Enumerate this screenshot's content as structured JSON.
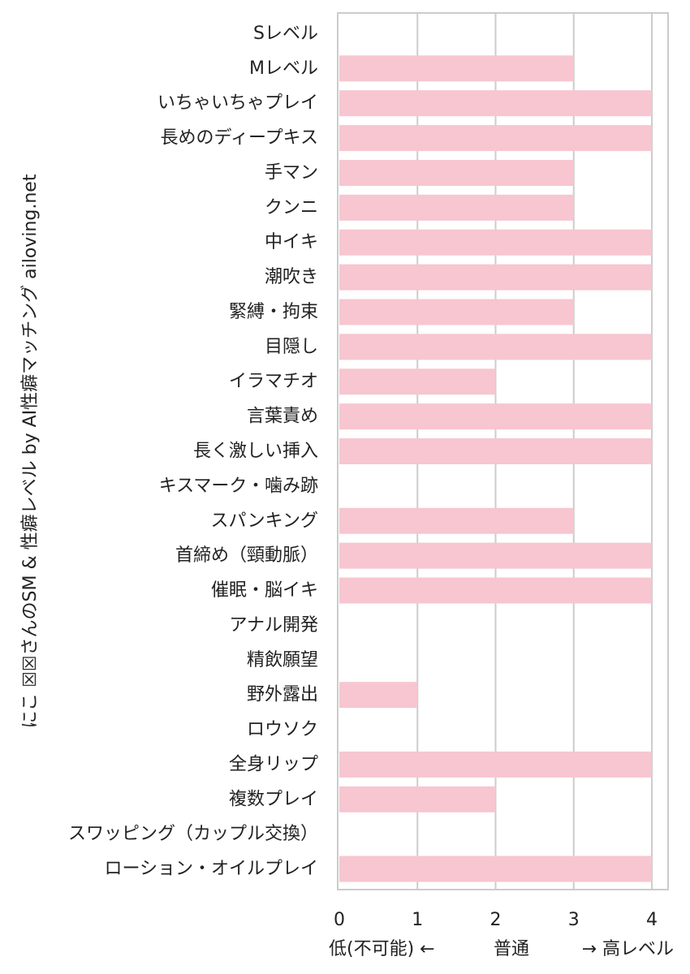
{
  "chart_data": {
    "type": "bar",
    "orientation": "horizontal",
    "ylabel": "にこ ☒☒さんのSM & 性癖レベル by AI性癖マッチング ailoving.net",
    "x_axis_text": {
      "left": "低(不可能) ←",
      "middle": "普通",
      "right": "→ 高レベル"
    },
    "xlim": [
      0,
      4
    ],
    "xticks": [
      0,
      1,
      2,
      3,
      4
    ],
    "grid": true,
    "bar_color": "#f7c6d0",
    "categories": [
      "Sレベル",
      "Mレベル",
      "いちゃいちゃプレイ",
      "長めのディープキス",
      "手マン",
      "クンニ",
      "中イキ",
      "潮吹き",
      "緊縛・拘束",
      "目隠し",
      "イラマチオ",
      "言葉責め",
      "長く激しい挿入",
      "キスマーク・噛み跡",
      "スパンキング",
      "首締め（頸動脈）",
      "催眠・脳イキ",
      "アナル開発",
      "精飲願望",
      "野外露出",
      "ロウソク",
      "全身リップ",
      "複数プレイ",
      "スワッピング（カップル交換）",
      "ローション・オイルプレイ"
    ],
    "values": [
      0,
      3,
      4,
      4,
      3,
      3,
      4,
      4,
      3,
      4,
      2,
      4,
      4,
      0,
      3,
      4,
      4,
      0,
      0,
      1,
      0,
      4,
      2,
      0,
      4
    ]
  }
}
